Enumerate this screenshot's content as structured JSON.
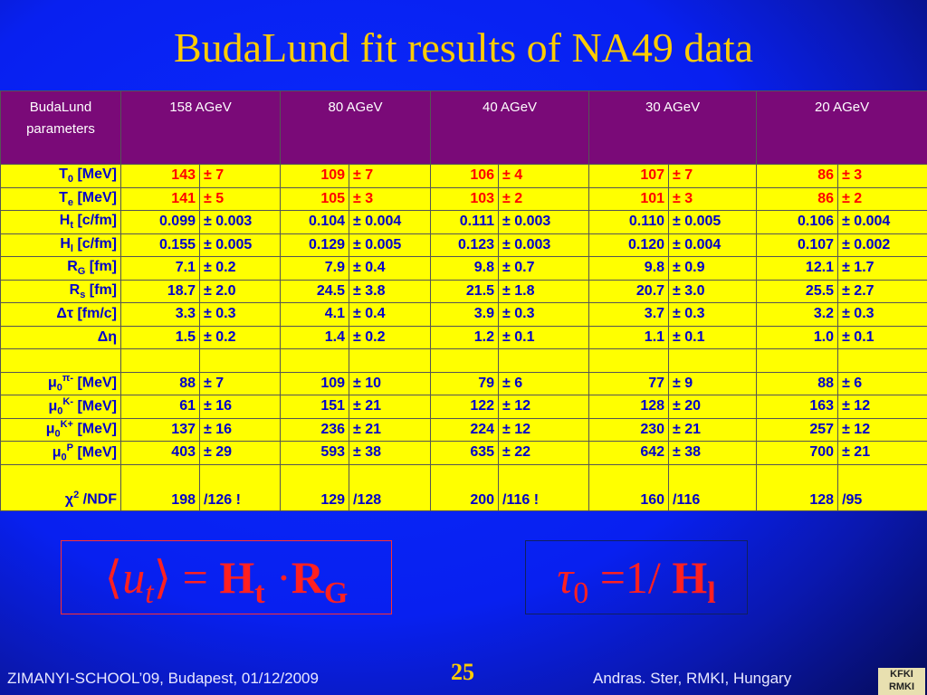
{
  "header": {
    "title": "BudaLund fit results of NA49 data"
  },
  "table": {
    "columns": [
      "BudaLund parameters",
      "158 AGeV",
      "80 AGeV",
      "40 AGeV",
      "30 AGeV",
      "20 AGeV"
    ],
    "groups": [
      [
        {
          "label": {
            "sym": "T",
            "sub": "0",
            "unit": "[MeV]"
          },
          "color": "#ff0000",
          "cells": [
            "143",
            "± 7",
            "109",
            "± 7",
            "106",
            "± 4",
            "107",
            "± 7",
            "86",
            "± 3"
          ]
        },
        {
          "label": {
            "sym": "T",
            "sub": "e",
            "unit": "[MeV]"
          },
          "color": "#ff0000",
          "cells": [
            "141",
            "± 5",
            "105",
            "± 3",
            "103",
            "± 2",
            "101",
            "± 3",
            "86",
            "± 2"
          ]
        },
        {
          "label": {
            "sym": "H",
            "sub": "t",
            "unit": "[c/fm]"
          },
          "color": "#0000cc",
          "cells": [
            "0.099",
            "± 0.003",
            "0.104",
            "± 0.004",
            "0.111",
            "± 0.003",
            "0.110",
            "± 0.005",
            "0.106",
            "± 0.004"
          ]
        },
        {
          "label": {
            "sym": "H",
            "sub": "l",
            "unit": "[c/fm]"
          },
          "color": "#0000cc",
          "cells": [
            "0.155",
            "± 0.005",
            "0.129",
            "± 0.005",
            "0.123",
            "± 0.003",
            "0.120",
            "± 0.004",
            "0.107",
            "± 0.002"
          ]
        },
        {
          "label": {
            "sym": "R",
            "sub": "G",
            "unit": "[fm]"
          },
          "color": "#0000cc",
          "cells": [
            "7.1",
            "± 0.2",
            "7.9",
            "± 0.4",
            "9.8",
            "± 0.7",
            "9.8",
            "± 0.9",
            "12.1",
            "± 1.7"
          ]
        },
        {
          "label": {
            "sym": "R",
            "sub": "s",
            "unit": "[fm]"
          },
          "color": "#0000cc",
          "cells": [
            "18.7",
            "± 2.0",
            "24.5",
            "± 3.8",
            "21.5",
            "± 1.8",
            "20.7",
            "± 3.0",
            "25.5",
            "± 2.7"
          ]
        },
        {
          "label": {
            "sym": "Δτ",
            "unit": "[fm/c]"
          },
          "color": "#0000cc",
          "cells": [
            "3.3",
            "± 0.3",
            "4.1",
            "± 0.4",
            "3.9",
            "± 0.3",
            "3.7",
            "± 0.3",
            "3.2",
            "± 0.3"
          ]
        },
        {
          "label": {
            "sym": "Δη"
          },
          "color": "#0000cc",
          "cells": [
            "1.5",
            "± 0.2",
            "1.4",
            "± 0.2",
            "1.2",
            "± 0.1",
            "1.1",
            "± 0.1",
            "1.0",
            "± 0.1"
          ]
        }
      ],
      [
        {
          "label": {
            "sym": "μ",
            "sub": "0",
            "sup": "π-",
            "unit": "[MeV]"
          },
          "color": "#0000cc",
          "cells": [
            "88",
            "± 7",
            "109",
            "± 10",
            "79",
            "± 6",
            "77",
            "± 9",
            "88",
            "± 6"
          ]
        },
        {
          "label": {
            "sym": "μ",
            "sub": "0",
            "sup": "K-",
            "unit": "[MeV]"
          },
          "color": "#0000cc",
          "cells": [
            "61",
            "± 16",
            "151",
            "± 21",
            "122",
            "± 12",
            "128",
            "± 20",
            "163",
            "± 12"
          ]
        },
        {
          "label": {
            "sym": "μ",
            "sub": "0",
            "sup": "K+",
            "unit": "[MeV]"
          },
          "color": "#0000cc",
          "cells": [
            "137",
            "± 16",
            "236",
            "± 21",
            "224",
            "± 12",
            "230",
            "± 21",
            "257",
            "± 12"
          ]
        },
        {
          "label": {
            "sym": "μ",
            "sub": "0",
            "sup": "P",
            "unit": "[MeV]"
          },
          "color": "#0000cc",
          "cells": [
            "403",
            "± 29",
            "593",
            "± 38",
            "635",
            "± 22",
            "642",
            "± 38",
            "700",
            "± 21"
          ]
        },
        {
          "label": {
            "sym": "χ",
            "sup": "2",
            "unit": "/NDF"
          },
          "color": "#0000cc",
          "cells": [
            "198",
            "/126 !",
            "129",
            "/128",
            "200",
            "/116 !",
            "160",
            "/116",
            "128",
            "/95"
          ]
        }
      ]
    ]
  },
  "formulas": [
    [
      "⟨",
      "u",
      "t",
      "⟩",
      "=",
      "H",
      "t",
      "·",
      "R",
      "G"
    ],
    [
      "τ",
      "0",
      "=",
      "1/",
      "H",
      "l"
    ]
  ],
  "footer": {
    "left": "ZIMANYI-SCHOOL’09, Budapest, 01/12/2009",
    "page": "25",
    "right": "Andras. Ster,  RMKI, Hungary",
    "logo": [
      "KFKI",
      "RMKI"
    ]
  }
}
